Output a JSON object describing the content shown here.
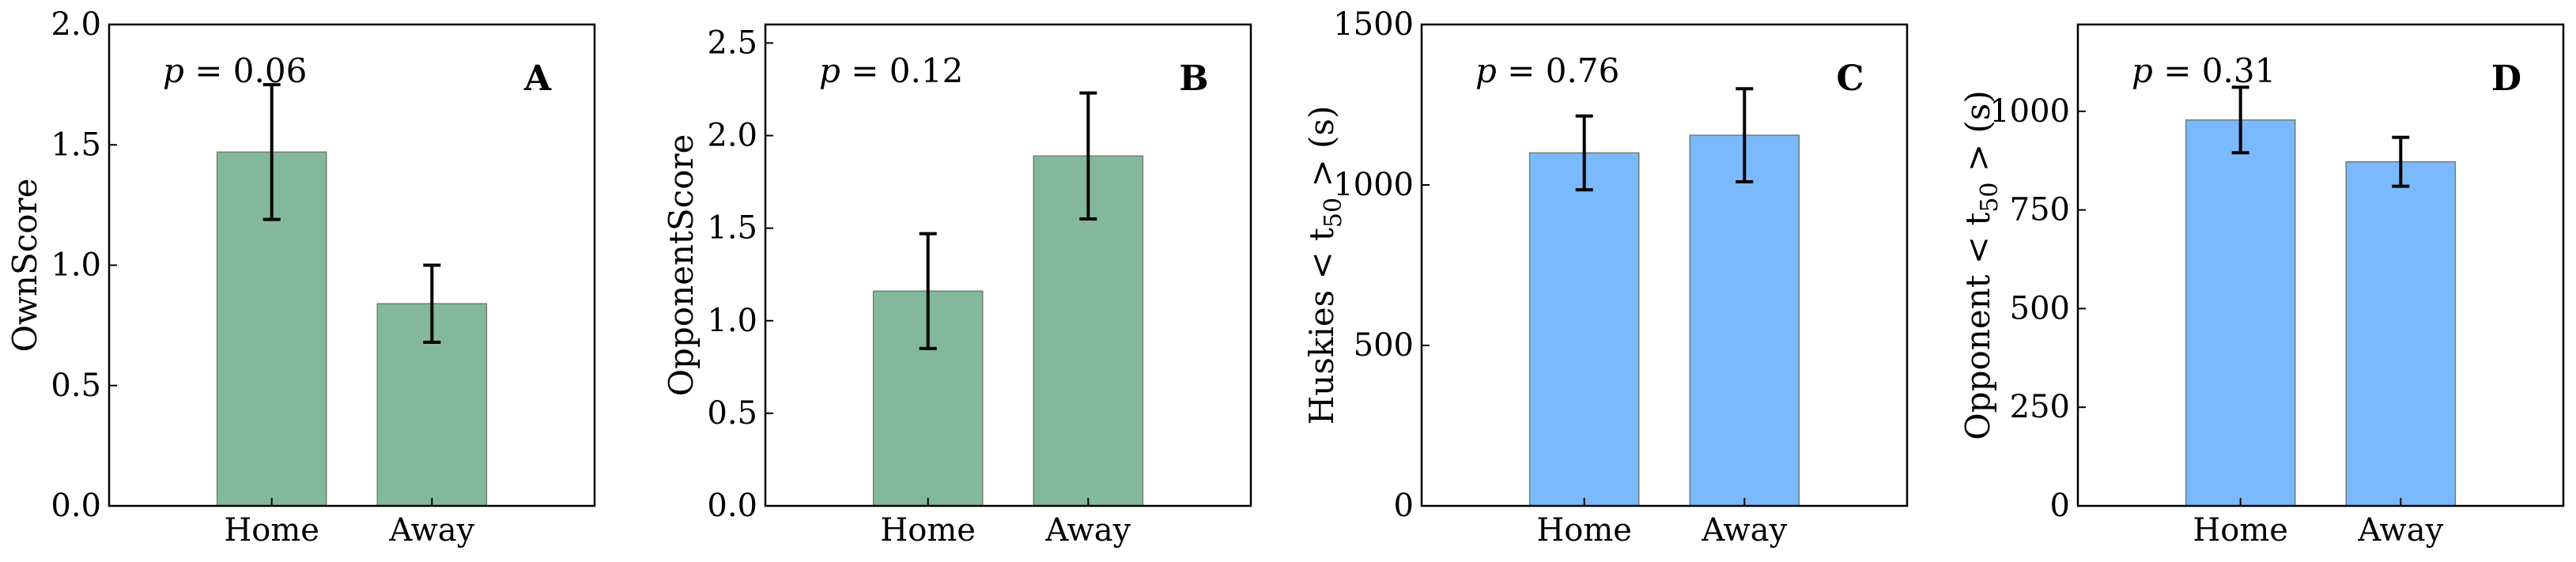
{
  "style": {
    "green_bar": "#83b99a",
    "blue_bar": "#7ab9fb",
    "bar_edge": "#6f7f76",
    "axis_color": "#000000"
  },
  "chart_data": [
    {
      "type": "bar",
      "panel_label": "A",
      "p_text": "p = 0.06",
      "p_var": "p",
      "p_rest": " = 0.06",
      "ylabel": "OwnScore",
      "categories": [
        "Home",
        "Away"
      ],
      "values": [
        1.47,
        0.84
      ],
      "errors": [
        0.28,
        0.16
      ],
      "ylim": [
        0,
        2.0
      ],
      "yticks": [
        0,
        0.5,
        1.0,
        1.5,
        2.0
      ],
      "ytick_labels": [
        "0.0",
        "0.5",
        "1.0",
        "1.5",
        "2.0"
      ],
      "color": "#83b99a"
    },
    {
      "type": "bar",
      "panel_label": "B",
      "p_text": "p = 0.12",
      "p_var": "p",
      "p_rest": " = 0.12",
      "ylabel": "OpponentScore",
      "categories": [
        "Home",
        "Away"
      ],
      "values": [
        1.16,
        1.89
      ],
      "errors": [
        0.31,
        0.34
      ],
      "ylim": [
        0,
        2.6
      ],
      "yticks": [
        0,
        0.5,
        1.0,
        1.5,
        2.0,
        2.5
      ],
      "ytick_labels": [
        "0.0",
        "0.5",
        "1.0",
        "1.5",
        "2.0",
        "2.5"
      ],
      "color": "#83b99a"
    },
    {
      "type": "bar",
      "panel_label": "C",
      "p_text": "p = 0.76",
      "p_var": "p",
      "p_rest": " = 0.76",
      "ylabel": "Huskies < t50 > (s)",
      "ylabel_parts": [
        "Huskies < t",
        "50",
        " > (s)"
      ],
      "categories": [
        "Home",
        "Away"
      ],
      "values": [
        1100,
        1155
      ],
      "errors": [
        115,
        145
      ],
      "ylim": [
        0,
        1500
      ],
      "yticks": [
        0,
        500,
        1000,
        1500
      ],
      "ytick_labels": [
        "0",
        "500",
        "1000",
        "1500"
      ],
      "color": "#7ab9fb"
    },
    {
      "type": "bar",
      "panel_label": "D",
      "p_text": "p = 0.31",
      "p_var": "p",
      "p_rest": " = 0.31",
      "ylabel": "Opponent < t50 > (s)",
      "ylabel_parts": [
        "Opponent < t",
        "50",
        " > (s)"
      ],
      "categories": [
        "Home",
        "Away"
      ],
      "values": [
        978,
        872
      ],
      "errors": [
        83,
        62
      ],
      "ylim": [
        0,
        1220
      ],
      "yticks": [
        0,
        250,
        500,
        750,
        1000
      ],
      "ytick_labels": [
        "0",
        "250",
        "500",
        "750",
        "1000"
      ],
      "color": "#7ab9fb"
    }
  ]
}
